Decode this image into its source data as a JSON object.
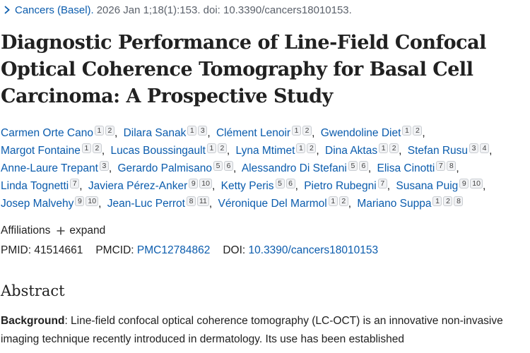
{
  "citation": {
    "journal": "Cancers (Basel).",
    "details": "2026 Jan 1;18(1):153. doi: 10.3390/cancers18010153."
  },
  "title": "Diagnostic Performance of Line-Field Confocal Optical Coherence Tomography for Basal Cell Carcinoma: A Prospective Study",
  "authors": [
    {
      "name": "Carmen Orte Cano",
      "affs": [
        "1",
        "2"
      ]
    },
    {
      "name": "Dilara Sanak",
      "affs": [
        "1",
        "3"
      ]
    },
    {
      "name": "Clément Lenoir",
      "affs": [
        "1",
        "2"
      ]
    },
    {
      "name": "Gwendoline Diet",
      "affs": [
        "1",
        "2"
      ]
    },
    {
      "name": "Margot Fontaine",
      "affs": [
        "1",
        "2"
      ]
    },
    {
      "name": "Lucas Boussingault",
      "affs": [
        "1",
        "2"
      ]
    },
    {
      "name": "Lyna Mtimet",
      "affs": [
        "1",
        "2"
      ]
    },
    {
      "name": "Dina Aktas",
      "affs": [
        "1",
        "2"
      ]
    },
    {
      "name": "Stefan Rusu",
      "affs": [
        "3",
        "4"
      ]
    },
    {
      "name": "Anne-Laure Trepant",
      "affs": [
        "3"
      ]
    },
    {
      "name": "Gerardo Palmisano",
      "affs": [
        "5",
        "6"
      ]
    },
    {
      "name": "Alessandro Di Stefani",
      "affs": [
        "5",
        "6"
      ]
    },
    {
      "name": "Elisa Cinotti",
      "affs": [
        "7",
        "8"
      ]
    },
    {
      "name": "Linda Tognetti",
      "affs": [
        "7"
      ]
    },
    {
      "name": "Javiera Pérez-Anker",
      "affs": [
        "9",
        "10"
      ]
    },
    {
      "name": "Ketty Peris",
      "affs": [
        "5",
        "6"
      ]
    },
    {
      "name": "Pietro Rubegni",
      "affs": [
        "7"
      ]
    },
    {
      "name": "Susana Puig",
      "affs": [
        "9",
        "10"
      ]
    },
    {
      "name": "Josep Malvehy",
      "affs": [
        "9",
        "10"
      ]
    },
    {
      "name": "Jean-Luc Perrot",
      "affs": [
        "8",
        "11"
      ]
    },
    {
      "name": "Véronique Del Marmol",
      "affs": [
        "1",
        "2"
      ]
    },
    {
      "name": "Mariano Suppa",
      "affs": [
        "1",
        "2",
        "8"
      ]
    }
  ],
  "affiliations": {
    "label": "Affiliations",
    "expand_label": "expand"
  },
  "identifiers": {
    "pmid_label": "PMID:",
    "pmid": "41514661",
    "pmcid_label": "PMCID:",
    "pmcid": "PMC12784862",
    "doi_label": "DOI:",
    "doi": "10.3390/cancers18010153"
  },
  "abstract": {
    "heading": "Abstract",
    "lead": "Background",
    "text": ": Line-field confocal optical coherence tomography (LC-OCT) is an innovative non-invasive imaging technique recently introduced in dermatology. Its use has been established"
  },
  "colors": {
    "link": "#0b5cad",
    "text": "#212121",
    "muted": "#5b616b"
  }
}
